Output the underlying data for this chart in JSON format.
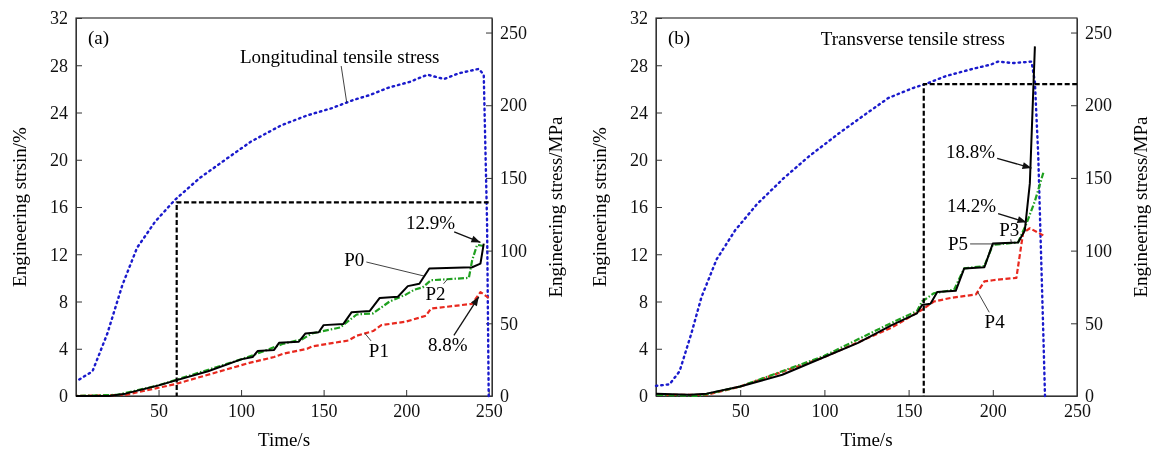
{
  "chart_data": [
    {
      "type": "line",
      "title": "(a)",
      "xlabel": "Time/s",
      "ylabel": "Engineering strsin/%",
      "y2label": "Engineering stress/MPa",
      "xlim": [
        0,
        252
      ],
      "xticks": [
        {
          "value": 0,
          "label": null
        },
        50,
        100,
        150,
        200,
        250
      ],
      "ylim": [
        0,
        32
      ],
      "yticks": [
        0,
        4,
        8,
        12,
        16,
        20,
        24,
        28,
        32
      ],
      "y2lim": [
        0,
        260
      ],
      "y2ticks": [
        0,
        50,
        100,
        150,
        200,
        250
      ],
      "grid": false,
      "legend": false,
      "series": [
        {
          "name": "P1",
          "color": "#e8281e",
          "line_style": "dashed",
          "x": [
            0,
            30,
            50,
            60,
            80,
            100,
            105,
            120,
            126,
            140,
            143,
            165,
            170,
            180,
            185,
            200,
            212,
            215,
            240,
            245,
            250
          ],
          "values": [
            0,
            0.1,
            0.7,
            1.0,
            1.8,
            2.6,
            2.8,
            3.3,
            3.6,
            4.0,
            4.2,
            4.7,
            5.1,
            5.5,
            6.0,
            6.3,
            6.8,
            7.4,
            7.8,
            8.8,
            8.3
          ]
        },
        {
          "name": "P2",
          "color": "#1fa01f",
          "line_style": "dashdot",
          "x": [
            0,
            25,
            50,
            100,
            110,
            125,
            137,
            143,
            160,
            170,
            180,
            190,
            200,
            205,
            210,
            215,
            238,
            240,
            243,
            247
          ],
          "values": [
            0,
            0.1,
            0.9,
            3.1,
            3.6,
            4.4,
            4.8,
            5.3,
            5.8,
            6.9,
            7.0,
            8.0,
            8.6,
            9.0,
            9.2,
            9.8,
            10.0,
            11.5,
            12.8,
            12.7
          ]
        },
        {
          "name": "P0",
          "color": "#000000",
          "line_style": "solid",
          "x": [
            0,
            20,
            30,
            50,
            60,
            80,
            100,
            107,
            110,
            120,
            123,
            135,
            139,
            147,
            150,
            162,
            167,
            178,
            184,
            195,
            201,
            208,
            214,
            240,
            245,
            247
          ],
          "values": [
            0,
            0,
            0.2,
            0.9,
            1.3,
            2.1,
            3.1,
            3.3,
            3.8,
            3.9,
            4.5,
            4.6,
            5.3,
            5.4,
            6.0,
            6.1,
            7.1,
            7.2,
            8.3,
            8.4,
            9.3,
            9.5,
            10.8,
            10.9,
            11.2,
            12.9
          ]
        },
        {
          "name": "Longitudinal tensile stress",
          "color": "#1a1acc",
          "line_style": "dotted",
          "axis": "y2",
          "x": [
            0,
            10,
            19,
            28,
            37,
            48,
            60,
            75,
            91,
            106,
            124,
            140,
            155,
            169,
            178,
            189,
            202,
            213,
            223,
            232,
            244,
            247,
            249,
            250
          ],
          "values": [
            10,
            17,
            43,
            76,
            102,
            120,
            135,
            150,
            163,
            175,
            186,
            193,
            198,
            204,
            207,
            212,
            216,
            221,
            218,
            222,
            225,
            221,
            120,
            0
          ]
        },
        {
          "color": "#000000",
          "line_style": "dashed",
          "x": [
            61,
            61,
            250
          ],
          "values": [
            0,
            16.4,
            16.4
          ]
        }
      ],
      "annotations": [
        {
          "text": "12.9%",
          "x": 245,
          "y": 13.0
        },
        {
          "text": "8.8%",
          "x": 244,
          "y": 8.4
        }
      ]
    },
    {
      "type": "line",
      "title": "(b)",
      "xlabel": "Time/s",
      "ylabel": "Engineering strsin/%",
      "y2label": "Engineering stress/MPa",
      "xlim": [
        0,
        250
      ],
      "xticks": [
        {
          "value": 0,
          "label": null
        },
        50,
        100,
        150,
        200,
        250
      ],
      "ylim": [
        0,
        32
      ],
      "yticks": [
        0,
        4,
        8,
        12,
        16,
        20,
        24,
        28,
        32
      ],
      "y2lim": [
        0,
        260
      ],
      "y2ticks": [
        0,
        50,
        100,
        150,
        200,
        250
      ],
      "grid": false,
      "legend": false,
      "series": [
        {
          "name": "P4",
          "color": "#e8281e",
          "line_style": "dashed",
          "x": [
            0,
            30,
            50,
            100,
            140,
            158,
            165,
            175,
            190,
            195,
            200,
            214,
            218,
            222,
            230
          ],
          "values": [
            0.1,
            0.1,
            0.8,
            3.3,
            5.8,
            7.3,
            8.0,
            8.3,
            8.6,
            9.7,
            9.8,
            10.0,
            13.8,
            14.2,
            13.6
          ]
        },
        {
          "name": "P5",
          "color": "#1fa01f",
          "line_style": "dashdot",
          "x": [
            0,
            25,
            50,
            100,
            140,
            155,
            158,
            165,
            177,
            183,
            195,
            200,
            215,
            220,
            225,
            230
          ],
          "values": [
            0.1,
            0,
            0.8,
            3.4,
            6.2,
            7.2,
            8.0,
            8.7,
            9.0,
            10.8,
            11.0,
            12.8,
            13.0,
            14.6,
            16.5,
            18.9
          ]
        },
        {
          "name": "P3",
          "color": "#000000",
          "line_style": "solid",
          "x": [
            0,
            20,
            30,
            50,
            75,
            100,
            120,
            140,
            155,
            158,
            163,
            167,
            178,
            183,
            195,
            200,
            215,
            219,
            222,
            225
          ],
          "values": [
            0.2,
            0.1,
            0.2,
            0.8,
            1.8,
            3.3,
            4.5,
            6.0,
            7.0,
            7.7,
            7.8,
            8.8,
            8.9,
            10.8,
            10.9,
            12.9,
            13.0,
            14.0,
            18.0,
            29.6
          ]
        },
        {
          "name": "Transverse tensile stress",
          "color": "#1a1acc",
          "line_style": "dotted",
          "axis": "y2",
          "x": [
            0,
            8,
            14,
            21,
            27,
            36,
            47,
            60,
            76,
            91,
            109,
            127,
            138,
            153,
            161,
            172,
            188,
            199,
            203,
            212,
            223,
            225,
            227,
            230,
            231
          ],
          "values": [
            7,
            8,
            17,
            43,
            68,
            94,
            114,
            132,
            150,
            165,
            181,
            196,
            205,
            212,
            215,
            220,
            225,
            228,
            230,
            229,
            230,
            216,
            165,
            43,
            0
          ]
        },
        {
          "color": "#000000",
          "line_style": "dashed",
          "x": [
            159,
            159,
            250
          ],
          "values": [
            0,
            26.4,
            26.4
          ]
        }
      ],
      "annotations": [
        {
          "text": "18.8%",
          "x": 223,
          "y": 19.3
        },
        {
          "text": "14.2%",
          "x": 220,
          "y": 14.7
        }
      ]
    }
  ]
}
